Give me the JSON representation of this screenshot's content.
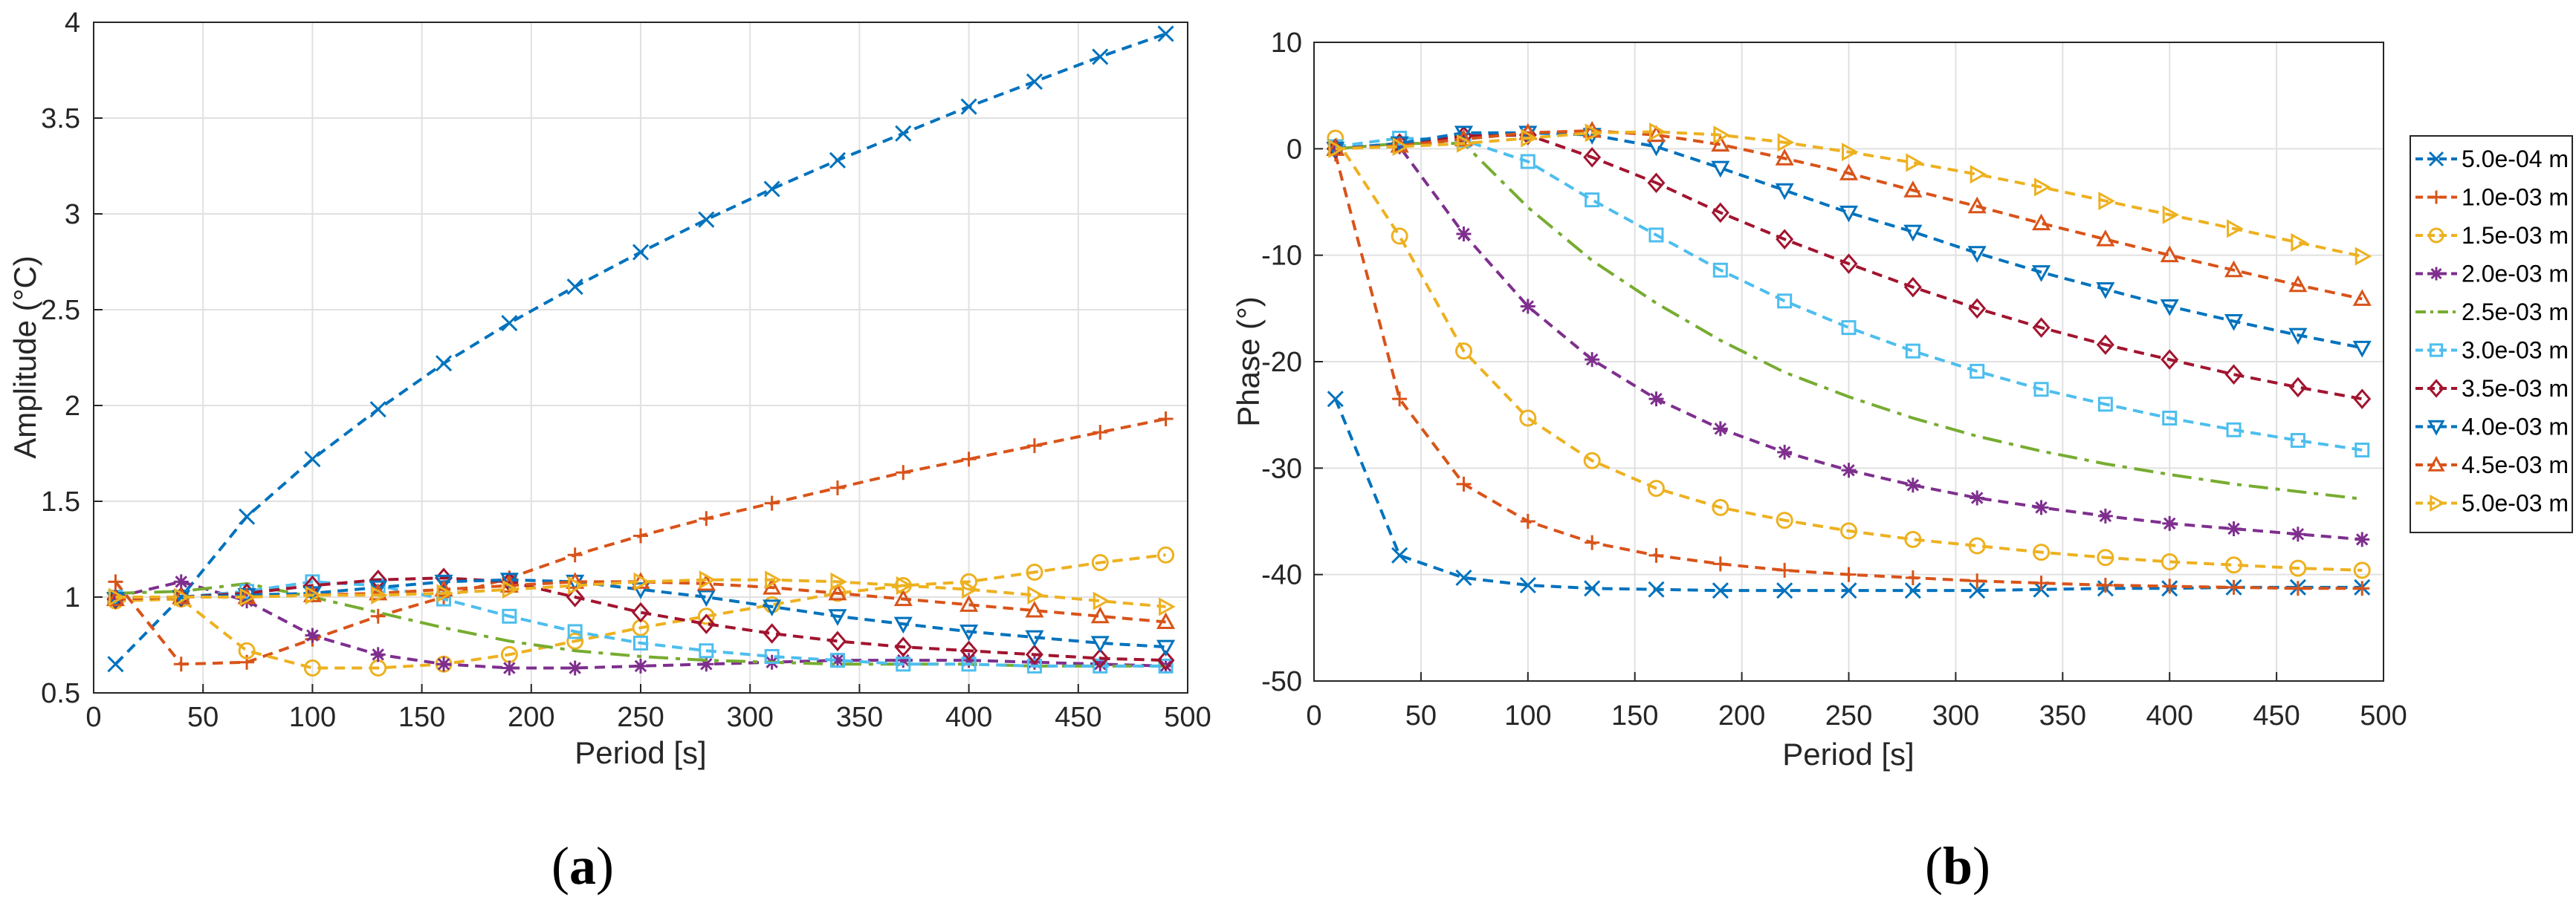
{
  "series_colors": [
    "#0072BD",
    "#D95319",
    "#EDB120",
    "#7E2F8E",
    "#77AC30",
    "#4DBEEE",
    "#A2142F",
    "#0072BD",
    "#D95319",
    "#EDB120"
  ],
  "series_markers": [
    "x",
    "plus",
    "circle",
    "star",
    "none",
    "square",
    "diamond",
    "triangle-down",
    "triangle-up",
    "triangle-right"
  ],
  "legend": [
    "5.0e-04 m",
    "1.0e-03 m",
    "1.5e-03 m",
    "2.0e-03 m",
    "2.5e-03 m",
    "3.0e-03 m",
    "3.5e-03 m",
    "4.0e-03 m",
    "4.5e-03 m",
    "5.0e-03 m"
  ],
  "chart_data": [
    {
      "type": "line",
      "panel": "a",
      "panel_label": {
        "open": "(",
        "letter": "a",
        "close": ")"
      },
      "xlabel": "Period [s]",
      "ylabel": "Amplitude  (°C)",
      "xlim": [
        0,
        500
      ],
      "ylim": [
        0.5,
        4
      ],
      "xticks": [
        "0",
        "50",
        "100",
        "150",
        "200",
        "250",
        "300",
        "350",
        "400",
        "450",
        "500"
      ],
      "yticks": [
        "0.5",
        "1",
        "1.5",
        "2",
        "2.5",
        "3",
        "3.5",
        "4"
      ],
      "grid": true,
      "x": [
        10,
        40,
        70,
        100,
        130,
        160,
        190,
        220,
        250,
        280,
        310,
        340,
        370,
        400,
        430,
        460,
        490
      ],
      "series": [
        {
          "name": "5.0e-04 m",
          "values": [
            0.65,
            1.0,
            1.42,
            1.72,
            1.98,
            2.22,
            2.43,
            2.62,
            2.8,
            2.97,
            3.13,
            3.28,
            3.42,
            3.56,
            3.69,
            3.82,
            3.94
          ]
        },
        {
          "name": "1.0e-03 m",
          "values": [
            1.08,
            0.65,
            0.66,
            0.78,
            0.9,
            1.0,
            1.1,
            1.22,
            1.32,
            1.41,
            1.49,
            1.57,
            1.65,
            1.72,
            1.79,
            1.86,
            1.93
          ]
        },
        {
          "name": "1.5e-03 m",
          "values": [
            0.98,
            0.99,
            0.72,
            0.63,
            0.63,
            0.65,
            0.7,
            0.77,
            0.84,
            0.9,
            0.96,
            1.02,
            1.06,
            1.08,
            1.13,
            1.18,
            1.22
          ]
        },
        {
          "name": "2.0e-03 m",
          "values": [
            1.0,
            1.08,
            0.98,
            0.8,
            0.7,
            0.65,
            0.63,
            0.63,
            0.64,
            0.65,
            0.66,
            0.67,
            0.67,
            0.67,
            0.66,
            0.65,
            0.64
          ]
        },
        {
          "name": "2.5e-03 m",
          "values": [
            1.02,
            1.03,
            1.07,
            1.0,
            0.92,
            0.84,
            0.77,
            0.72,
            0.69,
            0.67,
            0.66,
            0.65,
            0.65,
            0.65,
            0.64,
            0.64,
            0.64
          ]
        },
        {
          "name": "3.0e-03 m",
          "values": [
            1.0,
            1.0,
            1.03,
            1.08,
            1.06,
            0.99,
            0.9,
            0.82,
            0.76,
            0.72,
            0.69,
            0.67,
            0.65,
            0.65,
            0.64,
            0.64,
            0.64
          ]
        },
        {
          "name": "3.5e-03 m",
          "values": [
            0.99,
            1.0,
            1.02,
            1.06,
            1.09,
            1.1,
            1.08,
            1.0,
            0.92,
            0.86,
            0.81,
            0.77,
            0.74,
            0.72,
            0.7,
            0.68,
            0.67
          ]
        },
        {
          "name": "4.0e-03 m",
          "values": [
            0.99,
            1.0,
            1.01,
            1.02,
            1.05,
            1.08,
            1.09,
            1.08,
            1.04,
            1.0,
            0.95,
            0.9,
            0.86,
            0.82,
            0.79,
            0.76,
            0.74
          ]
        },
        {
          "name": "4.5e-03 m",
          "values": [
            0.99,
            1.0,
            1.0,
            1.01,
            1.02,
            1.04,
            1.06,
            1.08,
            1.08,
            1.07,
            1.05,
            1.02,
            0.99,
            0.96,
            0.93,
            0.9,
            0.87
          ]
        },
        {
          "name": "5.0e-03 m",
          "values": [
            1.0,
            1.0,
            1.0,
            1.01,
            1.01,
            1.02,
            1.04,
            1.06,
            1.08,
            1.09,
            1.09,
            1.08,
            1.06,
            1.04,
            1.01,
            0.98,
            0.95
          ]
        }
      ]
    },
    {
      "type": "line",
      "panel": "b",
      "panel_label": {
        "open": "(",
        "letter": "b",
        "close": ")"
      },
      "xlabel": "Period [s]",
      "ylabel": "Phase  (°)",
      "xlim": [
        0,
        500
      ],
      "ylim": [
        -50,
        10
      ],
      "xticks": [
        "0",
        "50",
        "100",
        "150",
        "200",
        "250",
        "300",
        "350",
        "400",
        "450",
        "500"
      ],
      "yticks": [
        "-50",
        "-40",
        "-30",
        "-20",
        "-10",
        "0",
        "10"
      ],
      "grid": true,
      "legend_position": "outside-right",
      "x": [
        10,
        40,
        70,
        100,
        130,
        160,
        190,
        220,
        250,
        280,
        310,
        340,
        370,
        400,
        430,
        460,
        490
      ],
      "series": [
        {
          "name": "5.0e-04 m",
          "values": [
            -23.5,
            -38.2,
            -40.3,
            -41,
            -41.3,
            -41.4,
            -41.5,
            -41.5,
            -41.5,
            -41.5,
            -41.5,
            -41.4,
            -41.3,
            -41.3,
            -41.2,
            -41.2,
            -41.2
          ]
        },
        {
          "name": "1.0e-03 m",
          "values": [
            -0.5,
            -23.5,
            -31.5,
            -35,
            -37,
            -38.2,
            -39,
            -39.6,
            -40,
            -40.3,
            -40.6,
            -40.8,
            -41,
            -41.1,
            -41.2,
            -41.3,
            -41.3
          ]
        },
        {
          "name": "1.5e-03 m",
          "values": [
            1,
            -8.2,
            -19,
            -25.3,
            -29.3,
            -31.9,
            -33.7,
            -34.9,
            -35.9,
            -36.7,
            -37.3,
            -37.9,
            -38.4,
            -38.8,
            -39.1,
            -39.4,
            -39.6
          ]
        },
        {
          "name": "2.0e-03 m",
          "values": [
            0.1,
            0.2,
            -8,
            -14.8,
            -19.8,
            -23.5,
            -26.3,
            -28.5,
            -30.2,
            -31.6,
            -32.8,
            -33.7,
            -34.5,
            -35.2,
            -35.7,
            -36.2,
            -36.7
          ]
        },
        {
          "name": "2.5e-03 m",
          "values": [
            0,
            0.5,
            0.5,
            -5.5,
            -10.5,
            -14.5,
            -18,
            -21,
            -23.3,
            -25.3,
            -27,
            -28.4,
            -29.6,
            -30.6,
            -31.5,
            -32.2,
            -32.9
          ]
        },
        {
          "name": "3.0e-03 m",
          "values": [
            0.2,
            1,
            0.8,
            -1.2,
            -4.8,
            -8.1,
            -11.4,
            -14.3,
            -16.8,
            -19,
            -20.9,
            -22.6,
            -24,
            -25.3,
            -26.4,
            -27.4,
            -28.3
          ]
        },
        {
          "name": "3.5e-03 m",
          "values": [
            0,
            0.5,
            1.2,
            1.3,
            -0.8,
            -3.2,
            -6,
            -8.5,
            -10.8,
            -13,
            -15,
            -16.8,
            -18.4,
            -19.8,
            -21.2,
            -22.4,
            -23.5
          ]
        },
        {
          "name": "4.0e-03 m",
          "values": [
            0,
            0.5,
            1.5,
            1.5,
            1.3,
            0.2,
            -1.8,
            -3.9,
            -6,
            -7.8,
            -9.8,
            -11.6,
            -13.2,
            -14.8,
            -16.2,
            -17.5,
            -18.7
          ]
        },
        {
          "name": "4.5e-03 m",
          "values": [
            0,
            0.3,
            0.9,
            1.5,
            1.7,
            1.3,
            0.4,
            -0.9,
            -2.3,
            -3.9,
            -5.4,
            -7,
            -8.5,
            -10,
            -11.4,
            -12.8,
            -14.1
          ]
        },
        {
          "name": "5.0e-03 m",
          "values": [
            0,
            0.2,
            0.5,
            1,
            1.5,
            1.6,
            1.3,
            0.6,
            -0.3,
            -1.3,
            -2.4,
            -3.6,
            -4.9,
            -6.2,
            -7.5,
            -8.8,
            -10.1
          ]
        }
      ]
    }
  ]
}
